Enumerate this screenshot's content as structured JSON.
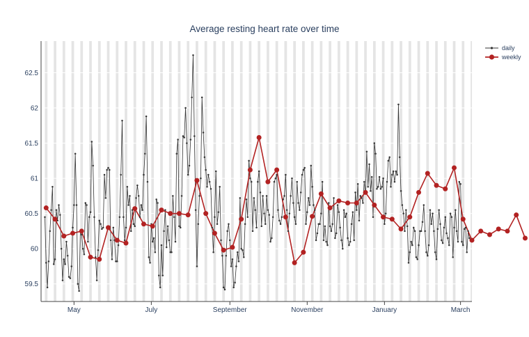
{
  "chart_data": {
    "type": "line",
    "title": "Average resting heart rate over time",
    "xlabel": "",
    "ylabel": "",
    "x_range": [
      "2023-04-05",
      "2024-03-10"
    ],
    "ylim": [
      59.25,
      62.95
    ],
    "x_ticks": [
      {
        "date": "2023-05-01",
        "label": "May"
      },
      {
        "date": "2023-07-01",
        "label": "July"
      },
      {
        "date": "2023-09-01",
        "label": "September"
      },
      {
        "date": "2023-11-01",
        "label": "November"
      },
      {
        "date": "2024-01-01",
        "label": "January"
      },
      {
        "date": "2024-03-01",
        "label": "March"
      }
    ],
    "y_ticks": [
      59.5,
      60,
      60.5,
      61,
      61.5,
      62,
      62.5
    ],
    "y_tick_labels": [
      "59.5",
      "60",
      "60.5",
      "61",
      "61.5",
      "62",
      "62.5"
    ],
    "weekend_shading": true,
    "legend_position": "top-right",
    "colors": {
      "daily": "#333333",
      "weekly": "#b22222",
      "shade": "#e4e4e4",
      "axis": "#444444",
      "grid": "#ffffff"
    },
    "series": [
      {
        "name": "daily",
        "start_date": "2023-04-08",
        "values": [
          60.45,
          59.8,
          59.45,
          59.82,
          60.25,
          60.55,
          60.88,
          59.78,
          59.85,
          60.55,
          60.4,
          60.62,
          60.48,
          60.0,
          59.55,
          59.85,
          59.78,
          60.1,
          59.9,
          59.6,
          59.58,
          59.75,
          60.3,
          60.62,
          61.35,
          60.62,
          59.5,
          59.4,
          60.25,
          60.2,
          60.0,
          59.92,
          60.65,
          60.62,
          60.1,
          60.45,
          60.52,
          61.52,
          61.18,
          60.45,
          59.88,
          59.55,
          59.98,
          60.4,
          60.35,
          60.28,
          60.3,
          61.05,
          60.72,
          61.12,
          61.15,
          61.12,
          60.12,
          59.85,
          60.3,
          60.12,
          59.82,
          59.82,
          60.05,
          60.45,
          61.05,
          61.82,
          60.45,
          60.12,
          60.3,
          60.88,
          60.62,
          60.75,
          60.25,
          60.55,
          60.35,
          60.32,
          60.72,
          60.9,
          60.75,
          60.45,
          60.62,
          60.55,
          61.05,
          61.35,
          61.88,
          60.95,
          59.88,
          59.8,
          60.35,
          60.1,
          60.15,
          59.95,
          60.7,
          60.65,
          59.62,
          59.45,
          60.05,
          59.62,
          60.25,
          60.55,
          60.02,
          60.32,
          60.12,
          59.95,
          59.95,
          60.75,
          60.45,
          60.1,
          61.35,
          61.55,
          60.32,
          60.3,
          60.75,
          61.6,
          61.58,
          62.0,
          61.5,
          61.05,
          61.18,
          61.55,
          62.15,
          62.75,
          61.6,
          60.55,
          59.75,
          60.35,
          60.75,
          61.0,
          62.15,
          61.65,
          61.3,
          61.12,
          60.88,
          61.05,
          60.95,
          60.85,
          60.3,
          59.95,
          60.45,
          61.1,
          60.35,
          60.52,
          60.88,
          60.12,
          59.9,
          59.45,
          59.42,
          59.9,
          60.25,
          60.35,
          60.12,
          59.75,
          59.85,
          59.45,
          59.52,
          59.75,
          59.95,
          59.82,
          60.72,
          60.0,
          59.98,
          59.88,
          60.35,
          60.7,
          60.45,
          61.25,
          61.0,
          60.95,
          60.25,
          60.72,
          60.55,
          60.3,
          60.95,
          61.1,
          60.8,
          60.32,
          60.75,
          60.5,
          60.35,
          60.75,
          60.55,
          60.48,
          60.1,
          60.15,
          60.45,
          60.95,
          61.0,
          61.05,
          60.55,
          60.4,
          60.35,
          60.45,
          60.7,
          60.75,
          61.05,
          60.55,
          60.25,
          60.5,
          60.75,
          61.0,
          60.65,
          60.45,
          60.35,
          60.95,
          60.65,
          60.55,
          60.8,
          61.05,
          61.12,
          61.15,
          60.35,
          60.52,
          60.72,
          60.62,
          61.18,
          60.88,
          60.62,
          60.55,
          60.12,
          60.22,
          60.35,
          60.35,
          60.5,
          60.95,
          60.12,
          60.32,
          60.1,
          60.05,
          60.65,
          60.32,
          60.25,
          60.35,
          60.72,
          60.15,
          60.22,
          60.62,
          60.52,
          60.3,
          60.12,
          60.0,
          60.55,
          60.45,
          60.5,
          60.15,
          60.05,
          60.1,
          60.35,
          60.52,
          60.12,
          60.8,
          60.55,
          60.92,
          60.4,
          60.75,
          60.72,
          60.65,
          60.95,
          60.78,
          61.38,
          60.88,
          61.2,
          60.82,
          61.02,
          60.45,
          61.5,
          61.35,
          60.85,
          60.88,
          61.02,
          60.85,
          60.88,
          61.0,
          60.35,
          60.5,
          60.95,
          61.25,
          61.3,
          60.88,
          61.05,
          61.1,
          60.95,
          61.1,
          61.05,
          62.05,
          61.3,
          60.82,
          60.62,
          60.5,
          60.25,
          60.55,
          60.32,
          59.8,
          59.95,
          60.1,
          60.05,
          60.3,
          60.25,
          59.88,
          59.85,
          60.05,
          60.25,
          60.25,
          60.38,
          60.62,
          60.25,
          59.95,
          59.9,
          60.05,
          60.55,
          60.35,
          60.5,
          60.25,
          59.95,
          59.85,
          60.28,
          60.55,
          60.35,
          60.12,
          60.08,
          60.3,
          60.45,
          60.22,
          60.15,
          60.05,
          60.5,
          60.45,
          59.88,
          60.3,
          60.55,
          60.25,
          60.1,
          60.95,
          60.92,
          60.1,
          60.05,
          60.28,
          60.3,
          59.95,
          60.25,
          60.15,
          60.12
        ]
      },
      {
        "name": "weekly",
        "start_date": "2023-04-09",
        "step_days": 7,
        "values": [
          60.58,
          60.42,
          60.18,
          60.22,
          60.25,
          59.88,
          59.85,
          60.3,
          60.12,
          60.08,
          60.57,
          60.35,
          60.32,
          60.55,
          60.5,
          60.5,
          60.48,
          60.97,
          60.5,
          60.22,
          59.98,
          60.02,
          60.42,
          61.12,
          61.58,
          60.95,
          61.12,
          60.45,
          59.8,
          59.95,
          60.46,
          60.78,
          60.58,
          60.68,
          60.65,
          60.65,
          60.8,
          60.62,
          60.45,
          60.42,
          60.28,
          60.45,
          60.8,
          61.07,
          60.9,
          60.85,
          61.15,
          60.42,
          60.12,
          60.25,
          60.2,
          60.28,
          60.25,
          60.48,
          60.15
        ]
      }
    ]
  }
}
